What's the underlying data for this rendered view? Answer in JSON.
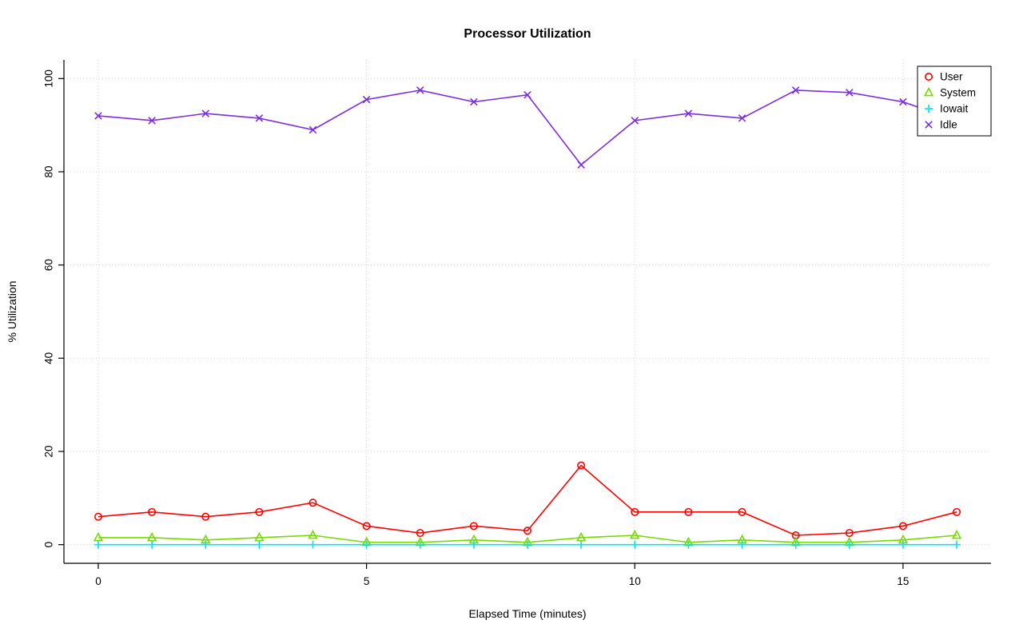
{
  "page": {
    "title": "Processor Utilization"
  },
  "chart_data": {
    "type": "line",
    "title": "Processor Utilization",
    "xlabel": "Elapsed Time (minutes)",
    "ylabel": "% Utilization",
    "x": [
      0,
      1,
      2,
      3,
      4,
      5,
      6,
      7,
      8,
      9,
      10,
      11,
      12,
      13,
      14,
      15,
      16
    ],
    "xticks": [
      0,
      5,
      10,
      15
    ],
    "yticks": [
      0,
      20,
      40,
      60,
      80,
      100
    ],
    "xlim": [
      0,
      16
    ],
    "ylim": [
      0,
      100
    ],
    "grid": true,
    "grid_style": "dotted",
    "grid_color": "#d3d3d3",
    "legend_position": "top-right",
    "series": [
      {
        "name": "User",
        "color": "#ff0000",
        "marker": "circle",
        "values": [
          6,
          7,
          6,
          7,
          9,
          4,
          2.5,
          4,
          3,
          17,
          7,
          7,
          7,
          2,
          2.5,
          4,
          7
        ]
      },
      {
        "name": "System",
        "color": "#76d900",
        "marker": "triangle",
        "values": [
          1.5,
          1.5,
          1,
          1.5,
          2,
          0.5,
          0.5,
          1,
          0.5,
          1.5,
          2,
          0.5,
          1,
          0.5,
          0.5,
          1,
          2
        ]
      },
      {
        "name": "Iowait",
        "color": "#00e5ee",
        "marker": "plus",
        "values": [
          0,
          0,
          0,
          0,
          0,
          0,
          0,
          0,
          0,
          0,
          0,
          0,
          0,
          0,
          0,
          0,
          0
        ]
      },
      {
        "name": "Idle",
        "color": "#7b2fde",
        "marker": "x",
        "values": [
          92,
          91,
          92.5,
          91.5,
          89,
          95.5,
          97.5,
          95,
          96.5,
          81.5,
          91,
          92.5,
          91.5,
          97.5,
          97,
          95,
          91
        ]
      }
    ]
  }
}
